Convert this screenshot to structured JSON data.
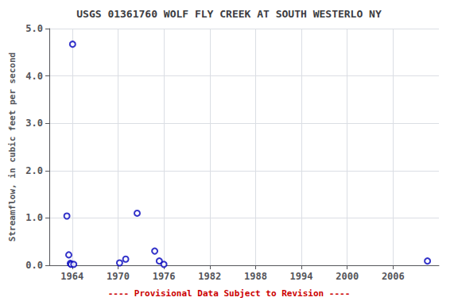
{
  "chart_data": {
    "type": "scatter",
    "title": "USGS 01361760 WOLF FLY CREEK AT SOUTH WESTERLO NY",
    "ylabel": "Streamflow, in cubic feet per second",
    "annotation": "---- Provisional Data Subject to Revision ----",
    "x": [
      1963.3,
      1963.55,
      1963.75,
      1963.85,
      1964.05,
      1964.2,
      1970.2,
      1971.0,
      1972.5,
      1974.8,
      1975.4,
      1976.0,
      2010.5
    ],
    "values": [
      1.04,
      0.22,
      0.04,
      0.02,
      4.67,
      0.02,
      0.05,
      0.13,
      1.1,
      0.3,
      0.09,
      0.02,
      0.09
    ],
    "color": "#0000bb",
    "marker": "circle",
    "xlim": [
      1961,
      2012
    ],
    "xticks": [
      1964,
      1970,
      1976,
      1982,
      1988,
      1994,
      2000,
      2006
    ],
    "ylim": [
      0,
      5.0
    ],
    "yticks": [
      {
        "value": 0.0,
        "label": "0.0"
      },
      {
        "value": 1.0,
        "label": "1.0"
      },
      {
        "value": 2.0,
        "label": "2.0"
      },
      {
        "value": 3.0,
        "label": "3.0"
      },
      {
        "value": 4.0,
        "label": "4.0"
      },
      {
        "value": 5.0,
        "label": "5.0"
      }
    ],
    "grid": true
  }
}
